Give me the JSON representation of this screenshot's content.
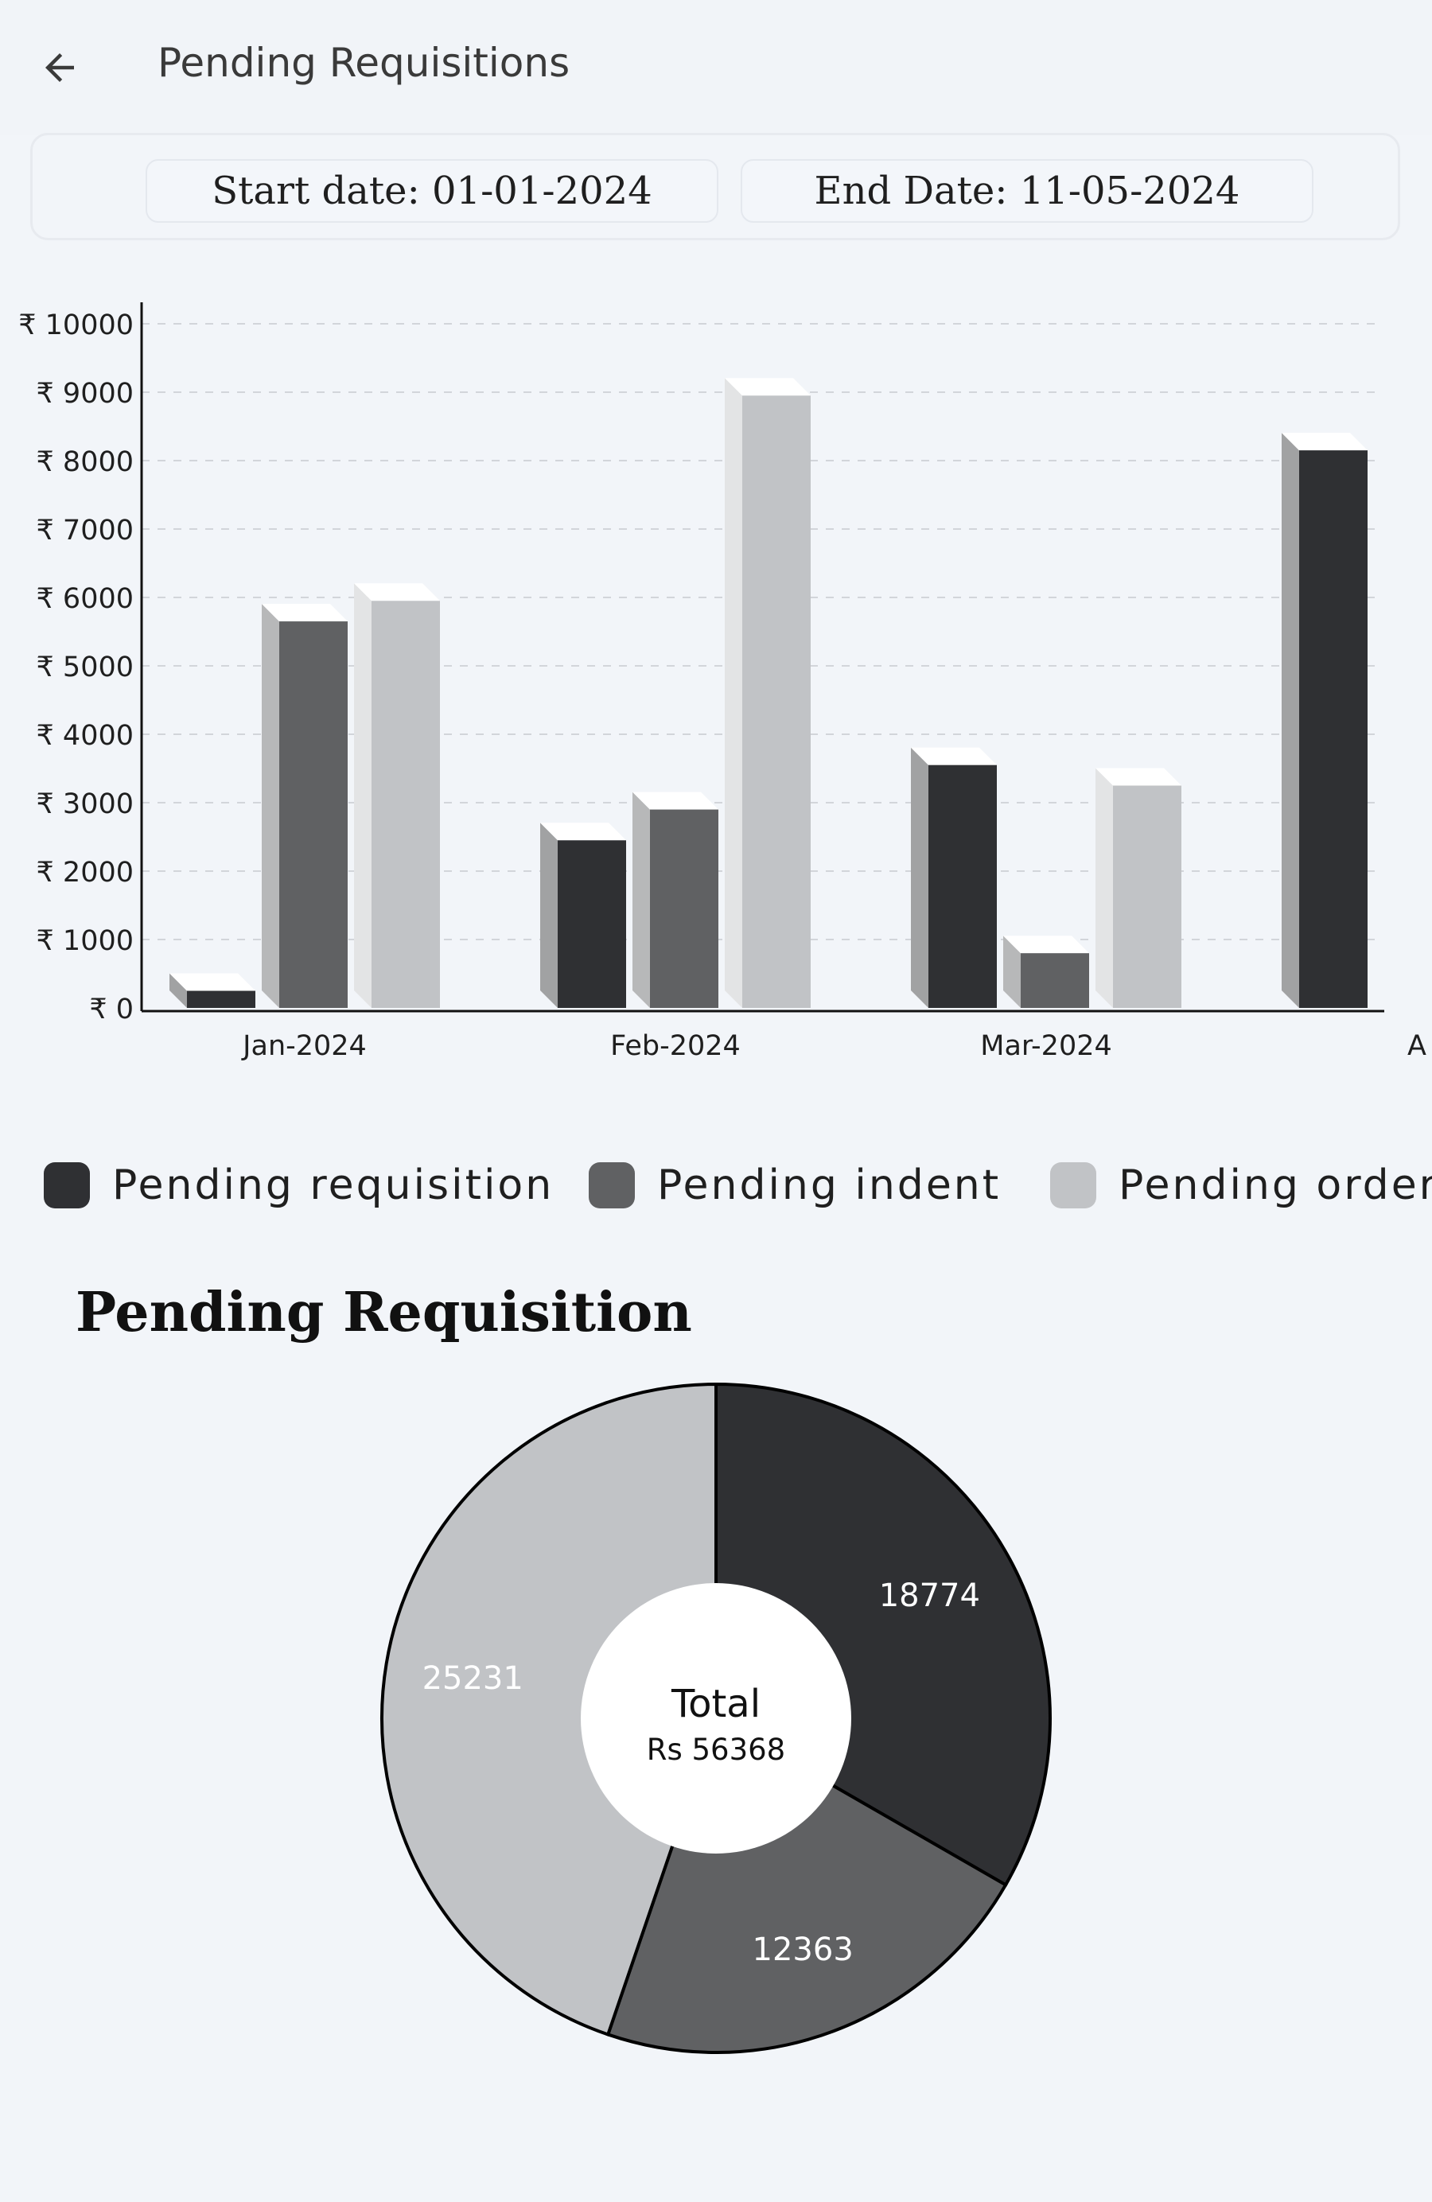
{
  "header": {
    "title": "Pending Requisitions",
    "back_icon": "arrow-left-icon"
  },
  "filters": {
    "start_date": "Start date: 01-01-2024",
    "end_date": "End Date: 11-05-2024"
  },
  "chart_data": [
    {
      "type": "bar",
      "categories": [
        "Jan-2024",
        "Feb-2024",
        "Mar-2024",
        "A"
      ],
      "series": [
        {
          "name": "Pending requisition",
          "color": "#2f3033",
          "values": [
            250,
            2450,
            3550,
            8150
          ]
        },
        {
          "name": "Pending indent",
          "color": "#606163",
          "values": [
            5650,
            2900,
            800,
            null
          ]
        },
        {
          "name": "Pending order",
          "color": "#c1c3c6",
          "values": [
            5950,
            8950,
            3250,
            null
          ]
        }
      ],
      "ylim": [
        0,
        10000
      ],
      "yticks": [
        "₹ 0",
        "₹ 1000",
        "₹ 2000",
        "₹ 3000",
        "₹ 4000",
        "₹ 5000",
        "₹ 6000",
        "₹ 7000",
        "₹ 8000",
        "₹ 9000",
        "₹ 10000"
      ],
      "grid": true,
      "legend_position": "bottom"
    },
    {
      "type": "pie",
      "title": "Pending Requisition",
      "slices": [
        {
          "label": "Pending requisition",
          "value": 18774,
          "color": "#2f3033"
        },
        {
          "label": "Pending indent",
          "value": 12363,
          "color": "#606163"
        },
        {
          "label": "Pending order",
          "value": 25231,
          "color": "#c1c3c6"
        }
      ],
      "center_title": "Total",
      "center_value": "Rs 56368"
    }
  ]
}
